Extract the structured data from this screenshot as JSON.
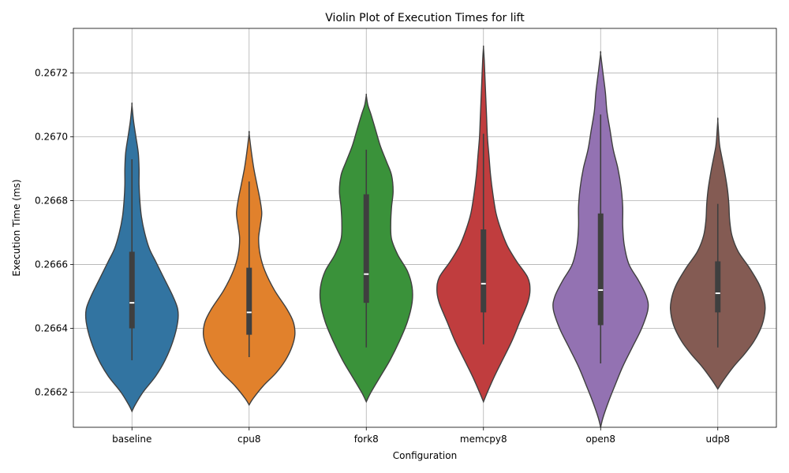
{
  "chart_data": {
    "type": "violin",
    "title": "Violin Plot of Execution Times for lift",
    "xlabel": "Configuration",
    "ylabel": "Execution Time (ms)",
    "categories": [
      "baseline",
      "cpu8",
      "fork8",
      "memcpy8",
      "open8",
      "udp8"
    ],
    "colors": [
      "#3274a1",
      "#e1812c",
      "#3a923a",
      "#c03d3e",
      "#9372b2",
      "#845b53"
    ],
    "y_ticks": [
      "0.2662",
      "0.2664",
      "0.2666",
      "0.2668",
      "0.2670",
      "0.2672"
    ],
    "ylim": [
      0.26609,
      0.26734
    ],
    "grid": true,
    "violins": [
      {
        "name": "baseline",
        "min": 0.2663,
        "q1": 0.2664,
        "median": 0.26648,
        "q3": 0.26664,
        "max": 0.26693,
        "profile": [
          [
            0.26614,
            0
          ],
          [
            0.26616,
            4
          ],
          [
            0.2662,
            14
          ],
          [
            0.26625,
            30
          ],
          [
            0.2663,
            42
          ],
          [
            0.26636,
            52
          ],
          [
            0.26642,
            58
          ],
          [
            0.26646,
            58
          ],
          [
            0.2665,
            52
          ],
          [
            0.26656,
            40
          ],
          [
            0.26661,
            30
          ],
          [
            0.26665,
            22
          ],
          [
            0.2667,
            16
          ],
          [
            0.26675,
            12
          ],
          [
            0.2668,
            10
          ],
          [
            0.26685,
            9
          ],
          [
            0.2669,
            9
          ],
          [
            0.26695,
            8
          ],
          [
            0.267,
            5
          ],
          [
            0.26705,
            2
          ],
          [
            0.2671,
            0
          ]
        ]
      },
      {
        "name": "cpu8",
        "min": 0.26631,
        "q1": 0.26638,
        "median": 0.26645,
        "q3": 0.26659,
        "max": 0.26686,
        "profile": [
          [
            0.26616,
            0
          ],
          [
            0.26618,
            5
          ],
          [
            0.26622,
            18
          ],
          [
            0.26626,
            34
          ],
          [
            0.2663,
            46
          ],
          [
            0.26634,
            54
          ],
          [
            0.26638,
            58
          ],
          [
            0.26642,
            56
          ],
          [
            0.26646,
            48
          ],
          [
            0.26652,
            32
          ],
          [
            0.26658,
            20
          ],
          [
            0.26663,
            14
          ],
          [
            0.26668,
            12
          ],
          [
            0.26672,
            14
          ],
          [
            0.26676,
            16
          ],
          [
            0.2668,
            14
          ],
          [
            0.26685,
            10
          ],
          [
            0.2669,
            6
          ],
          [
            0.26695,
            3
          ],
          [
            0.26701,
            0
          ]
        ]
      },
      {
        "name": "fork8",
        "min": 0.26634,
        "q1": 0.26648,
        "median": 0.26657,
        "q3": 0.26682,
        "max": 0.26696,
        "profile": [
          [
            0.26617,
            0
          ],
          [
            0.2662,
            6
          ],
          [
            0.26625,
            18
          ],
          [
            0.2663,
            30
          ],
          [
            0.26636,
            42
          ],
          [
            0.26642,
            52
          ],
          [
            0.26648,
            58
          ],
          [
            0.26653,
            58
          ],
          [
            0.26658,
            52
          ],
          [
            0.26663,
            40
          ],
          [
            0.26668,
            32
          ],
          [
            0.26673,
            31
          ],
          [
            0.26678,
            32
          ],
          [
            0.26683,
            34
          ],
          [
            0.26688,
            32
          ],
          [
            0.26692,
            26
          ],
          [
            0.26697,
            18
          ],
          [
            0.26702,
            12
          ],
          [
            0.26707,
            6
          ],
          [
            0.2671,
            2
          ],
          [
            0.26713,
            0
          ]
        ]
      },
      {
        "name": "memcpy8",
        "min": 0.26635,
        "q1": 0.26645,
        "median": 0.26654,
        "q3": 0.26671,
        "max": 0.26701,
        "profile": [
          [
            0.26617,
            0
          ],
          [
            0.2662,
            5
          ],
          [
            0.26625,
            14
          ],
          [
            0.2663,
            24
          ],
          [
            0.26636,
            36
          ],
          [
            0.26642,
            46
          ],
          [
            0.26648,
            56
          ],
          [
            0.26652,
            59
          ],
          [
            0.26656,
            56
          ],
          [
            0.26661,
            42
          ],
          [
            0.26666,
            30
          ],
          [
            0.26671,
            22
          ],
          [
            0.26676,
            16
          ],
          [
            0.26682,
            12
          ],
          [
            0.26688,
            9
          ],
          [
            0.26694,
            7
          ],
          [
            0.267,
            5
          ],
          [
            0.26706,
            4
          ],
          [
            0.26712,
            3
          ],
          [
            0.26718,
            2
          ],
          [
            0.26724,
            1
          ],
          [
            0.26728,
            0
          ]
        ]
      },
      {
        "name": "open8",
        "min": 0.26629,
        "q1": 0.26641,
        "median": 0.26652,
        "q3": 0.26676,
        "max": 0.26707,
        "profile": [
          [
            0.26609,
            0
          ],
          [
            0.26612,
            3
          ],
          [
            0.26617,
            10
          ],
          [
            0.26622,
            18
          ],
          [
            0.26628,
            28
          ],
          [
            0.26634,
            40
          ],
          [
            0.2664,
            52
          ],
          [
            0.26646,
            60
          ],
          [
            0.2665,
            58
          ],
          [
            0.26655,
            48
          ],
          [
            0.2666,
            36
          ],
          [
            0.26666,
            30
          ],
          [
            0.26672,
            28
          ],
          [
            0.26678,
            28
          ],
          [
            0.26684,
            26
          ],
          [
            0.2669,
            22
          ],
          [
            0.26696,
            16
          ],
          [
            0.26702,
            12
          ],
          [
            0.26708,
            8
          ],
          [
            0.26714,
            6
          ],
          [
            0.2672,
            3
          ],
          [
            0.26726,
            0
          ]
        ]
      },
      {
        "name": "udp8",
        "min": 0.26634,
        "q1": 0.26645,
        "median": 0.26651,
        "q3": 0.26661,
        "max": 0.26679,
        "profile": [
          [
            0.26621,
            0
          ],
          [
            0.26624,
            8
          ],
          [
            0.26628,
            20
          ],
          [
            0.26632,
            34
          ],
          [
            0.26636,
            46
          ],
          [
            0.26641,
            56
          ],
          [
            0.26646,
            60
          ],
          [
            0.2665,
            58
          ],
          [
            0.26654,
            52
          ],
          [
            0.26659,
            40
          ],
          [
            0.26664,
            26
          ],
          [
            0.26669,
            18
          ],
          [
            0.26674,
            15
          ],
          [
            0.26679,
            14
          ],
          [
            0.26684,
            12
          ],
          [
            0.2669,
            8
          ],
          [
            0.26695,
            4
          ],
          [
            0.26698,
            2
          ],
          [
            0.26705,
            0
          ]
        ]
      }
    ]
  }
}
